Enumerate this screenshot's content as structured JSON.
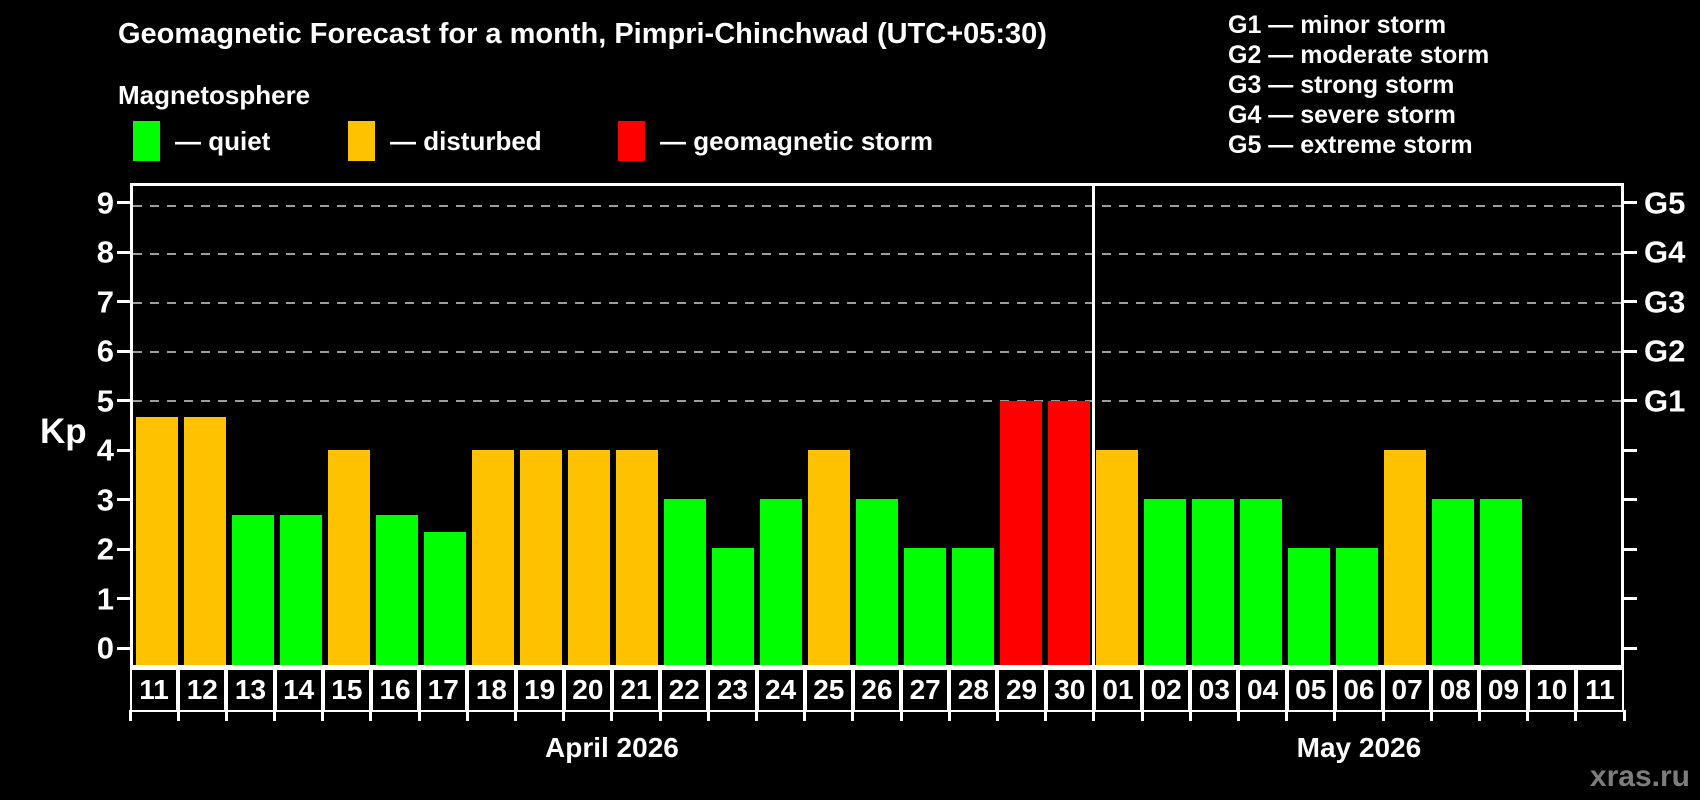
{
  "header": {
    "title": "Geomagnetic Forecast for a month, Pimpri-Chinchwad (UTC+05:30)",
    "subtitle": "Magnetosphere"
  },
  "series_legend": {
    "items": [
      {
        "name": "quiet",
        "label": "— quiet",
        "color": "#00ff00"
      },
      {
        "name": "disturbed",
        "label": "— disturbed",
        "color": "#ffc200"
      },
      {
        "name": "storm",
        "label": "— geomagnetic storm",
        "color": "#ff0000"
      }
    ]
  },
  "g_legend": {
    "items": [
      "G1 — minor storm",
      "G2 — moderate storm",
      "G3 — strong storm",
      "G4 — severe storm",
      "G5 — extreme storm"
    ]
  },
  "chart_data": {
    "type": "bar",
    "title": "Geomagnetic Forecast for a month, Pimpri-Chinchwad (UTC+05:30)",
    "ylabel": "Kp",
    "ylim": [
      -0.4,
      9.4
    ],
    "yticks": [
      0,
      1,
      2,
      3,
      4,
      5,
      6,
      7,
      8,
      9
    ],
    "gridlines": [
      5,
      6,
      7,
      8,
      9
    ],
    "right_axis": [
      {
        "label": "G1",
        "kp": 5
      },
      {
        "label": "G2",
        "kp": 6
      },
      {
        "label": "G3",
        "kp": 7
      },
      {
        "label": "G4",
        "kp": 8
      },
      {
        "label": "G5",
        "kp": 9
      }
    ],
    "colors": {
      "quiet": "#00ff00",
      "disturbed": "#ffc200",
      "storm": "#ff0000"
    },
    "months": [
      {
        "label": "April 2026",
        "days": [
          {
            "day": "11",
            "kp": 4.67,
            "status": "disturbed"
          },
          {
            "day": "12",
            "kp": 4.67,
            "status": "disturbed"
          },
          {
            "day": "13",
            "kp": 2.67,
            "status": "quiet"
          },
          {
            "day": "14",
            "kp": 2.67,
            "status": "quiet"
          },
          {
            "day": "15",
            "kp": 4,
            "status": "disturbed"
          },
          {
            "day": "16",
            "kp": 2.67,
            "status": "quiet"
          },
          {
            "day": "17",
            "kp": 2.33,
            "status": "quiet"
          },
          {
            "day": "18",
            "kp": 4,
            "status": "disturbed"
          },
          {
            "day": "19",
            "kp": 4,
            "status": "disturbed"
          },
          {
            "day": "20",
            "kp": 4,
            "status": "disturbed"
          },
          {
            "day": "21",
            "kp": 4,
            "status": "disturbed"
          },
          {
            "day": "22",
            "kp": 3,
            "status": "quiet"
          },
          {
            "day": "23",
            "kp": 2,
            "status": "quiet"
          },
          {
            "day": "24",
            "kp": 3,
            "status": "quiet"
          },
          {
            "day": "25",
            "kp": 4,
            "status": "disturbed"
          },
          {
            "day": "26",
            "kp": 3,
            "status": "quiet"
          },
          {
            "day": "27",
            "kp": 2,
            "status": "quiet"
          },
          {
            "day": "28",
            "kp": 2,
            "status": "quiet"
          },
          {
            "day": "29",
            "kp": 5,
            "status": "storm"
          },
          {
            "day": "30",
            "kp": 5,
            "status": "storm"
          }
        ]
      },
      {
        "label": "May 2026",
        "days": [
          {
            "day": "01",
            "kp": 4,
            "status": "disturbed"
          },
          {
            "day": "02",
            "kp": 3,
            "status": "quiet"
          },
          {
            "day": "03",
            "kp": 3,
            "status": "quiet"
          },
          {
            "day": "04",
            "kp": 3,
            "status": "quiet"
          },
          {
            "day": "05",
            "kp": 2,
            "status": "quiet"
          },
          {
            "day": "06",
            "kp": 2,
            "status": "quiet"
          },
          {
            "day": "07",
            "kp": 4,
            "status": "disturbed"
          },
          {
            "day": "08",
            "kp": 3,
            "status": "quiet"
          },
          {
            "day": "09",
            "kp": 3,
            "status": "quiet"
          },
          {
            "day": "10",
            "kp": null,
            "status": null
          },
          {
            "day": "11",
            "kp": null,
            "status": null
          }
        ]
      }
    ]
  },
  "watermark": "xras.ru"
}
